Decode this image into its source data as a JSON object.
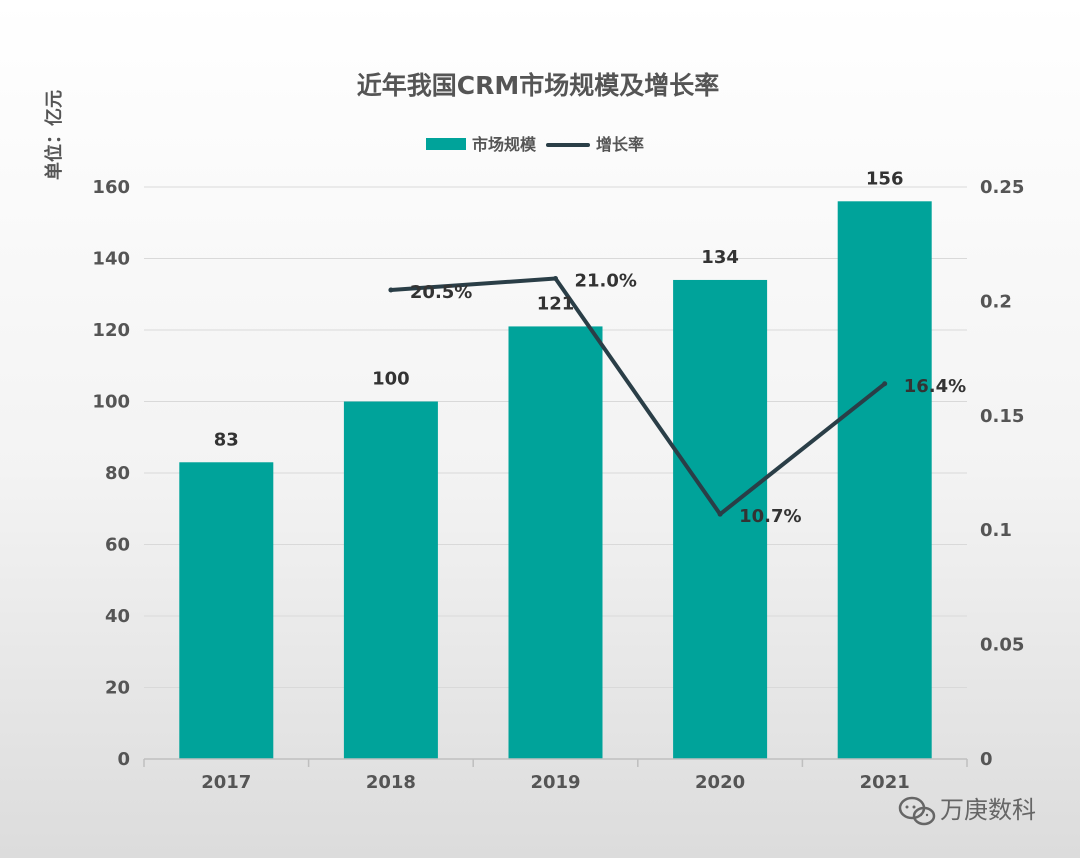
{
  "colors": {
    "bar": "#00A39A",
    "line": "#2A3E47",
    "text": "#555555",
    "grid": "#D9D9D9"
  },
  "chart_data": {
    "type": "bar",
    "title": "近年我国CRM市场规模及增长率",
    "ylabel": "单位：亿元",
    "categories": [
      "2017",
      "2018",
      "2019",
      "2020",
      "2021"
    ],
    "series": [
      {
        "name": "市场规模",
        "type": "bar",
        "axis": "left",
        "values": [
          83,
          100,
          121,
          134,
          156
        ],
        "labels": [
          "83",
          "100",
          "121",
          "134",
          "156"
        ]
      },
      {
        "name": "增长率",
        "type": "line",
        "axis": "right",
        "values": [
          null,
          0.205,
          0.21,
          0.107,
          0.164
        ],
        "labels": [
          "",
          "20.5%",
          "21.0%",
          "10.7%",
          "16.4%"
        ]
      }
    ],
    "ylim": [
      0,
      160
    ],
    "yticks": [
      "0",
      "20",
      "40",
      "60",
      "80",
      "100",
      "120",
      "140",
      "160"
    ],
    "y2lim": [
      0,
      0.25
    ],
    "y2ticks": [
      "0",
      "0.05",
      "0.1",
      "0.15",
      "0.2",
      "0.25"
    ],
    "grid": true,
    "legend_position": "top-center"
  },
  "watermark": {
    "text": "万庚数科",
    "icon": "wechat-icon"
  }
}
